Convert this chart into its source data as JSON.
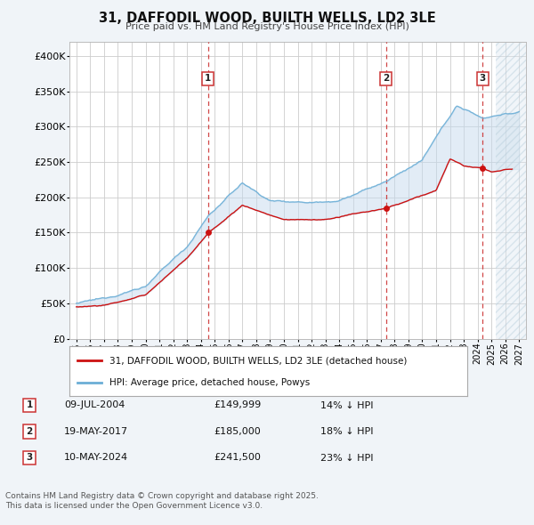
{
  "title": "31, DAFFODIL WOOD, BUILTH WELLS, LD2 3LE",
  "subtitle": "Price paid vs. HM Land Registry's House Price Index (HPI)",
  "ylabel_ticks": [
    "£0",
    "£50K",
    "£100K",
    "£150K",
    "£200K",
    "£250K",
    "£300K",
    "£350K",
    "£400K"
  ],
  "ytick_values": [
    0,
    50000,
    100000,
    150000,
    200000,
    250000,
    300000,
    350000,
    400000
  ],
  "ylim": [
    0,
    420000
  ],
  "xlim_start": 1994.5,
  "xlim_end": 2027.5,
  "hpi_color": "#6baed6",
  "price_color": "#cc1111",
  "vline_color": "#cc3333",
  "fill_color": "#c6dbef",
  "hatch_bg": "#dce8f0",
  "transaction_markers": [
    {
      "num": 1,
      "year": 2004.53,
      "price": 149999,
      "label": "09-JUL-2004",
      "price_str": "£149,999",
      "pct": "14%"
    },
    {
      "num": 2,
      "year": 2017.38,
      "price": 185000,
      "label": "19-MAY-2017",
      "price_str": "£185,000",
      "pct": "18%"
    },
    {
      "num": 3,
      "year": 2024.36,
      "price": 241500,
      "label": "10-MAY-2024",
      "price_str": "£241,500",
      "pct": "23%"
    }
  ],
  "legend_property_label": "31, DAFFODIL WOOD, BUILTH WELLS, LD2 3LE (detached house)",
  "legend_hpi_label": "HPI: Average price, detached house, Powys",
  "footer1": "Contains HM Land Registry data © Crown copyright and database right 2025.",
  "footer2": "This data is licensed under the Open Government Licence v3.0.",
  "bg_color": "#f0f4f8",
  "plot_bg": "#ffffff"
}
